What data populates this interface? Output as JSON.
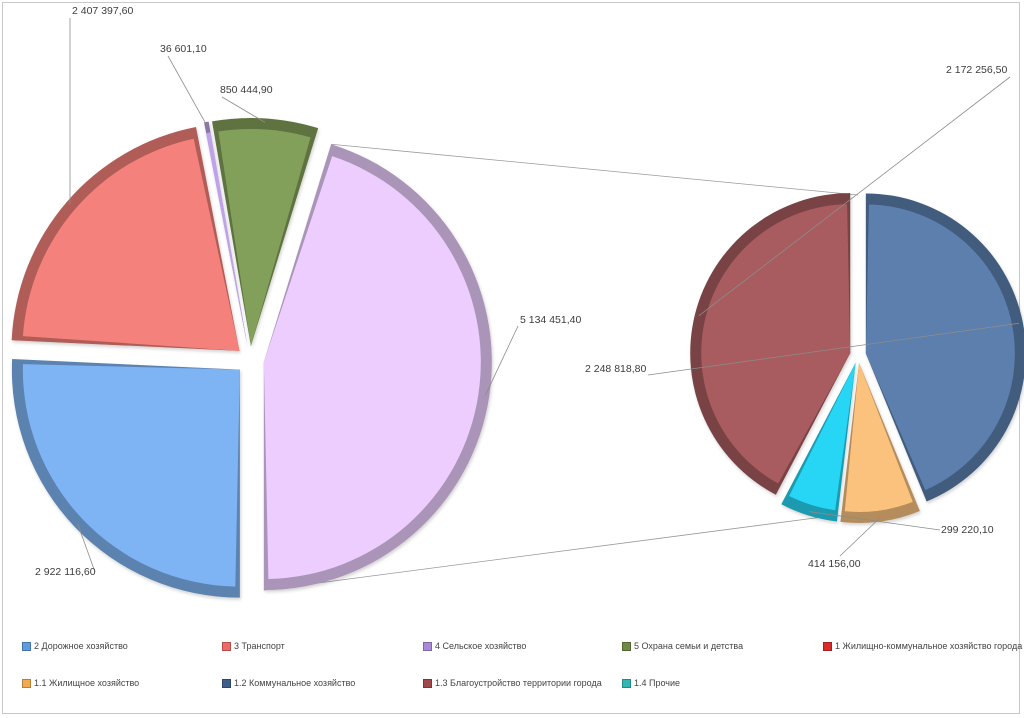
{
  "chart_data": {
    "type": "bar-of-pie",
    "main_pie": {
      "categories": [
        "2 Дорожное хозяйство",
        "3 Транспорт",
        "4 Сельское хозяйство",
        "5 Охрана семьи и детства",
        "1 Жилищно-коммунальное  хозяйство города"
      ],
      "values": [
        2922116.6,
        2407397.6,
        36601.1,
        850444.9,
        5134451.4
      ],
      "value_labels": [
        "2 922 116,60",
        "2 407 397,60",
        "36 601,10",
        "850 444,90",
        "5 134 451,40"
      ],
      "colors": [
        "#7eb4f4",
        "#f5817b",
        "#c0a2e8",
        "#82a05a",
        "#eccdfe"
      ]
    },
    "secondary_pie": {
      "categories": [
        "1.2 Коммунальное хозяйство",
        "1.1 Жилищное хозяйство",
        "1.4 Прочие",
        "1.3 Благоустройство территории города"
      ],
      "values": [
        2248818.8,
        414156.0,
        299220.1,
        2172256.5
      ],
      "value_labels": [
        "2 248 818,80",
        "414 156,00",
        "299 220,10",
        "2 172 256,50"
      ],
      "colors": [
        "#5b7fad",
        "#fbc27e",
        "#27d6f4",
        "#a85c5e"
      ]
    }
  },
  "legend": {
    "row1": [
      {
        "label": "2 Дорожное хозяйство",
        "color": "#5f9be0"
      },
      {
        "label": "3 Транспорт",
        "color": "#ee6a64"
      },
      {
        "label": "4 Сельское хозяйство",
        "color": "#a98ad8"
      },
      {
        "label": "5 Охрана семьи и детства",
        "color": "#6e8a44"
      },
      {
        "label": "1 Жилищно-коммунальное  хозяйство города",
        "color": "#d92b2b"
      }
    ],
    "row2": [
      {
        "label": "1.1 Жилищное хозяйство",
        "color": "#f5a94e"
      },
      {
        "label": "1.2 Коммунальное хозяйство",
        "color": "#3f5f8a"
      },
      {
        "label": "1.3 Благоустройство территории города",
        "color": "#a0494d"
      },
      {
        "label": "1.4 Прочие",
        "color": "#2fb7b4"
      }
    ]
  }
}
